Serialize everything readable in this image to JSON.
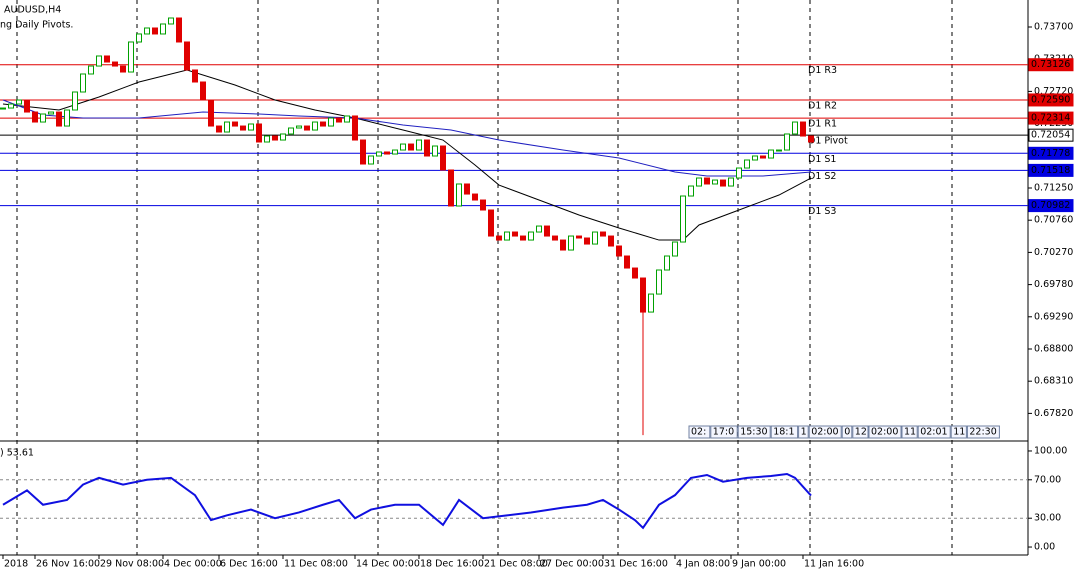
{
  "chart_data": {
    "type": "candlestick",
    "title": "AUDUSD,H4",
    "subtitle": "ng Daily Pivots.",
    "categories": [
      "2018",
      null,
      null,
      null,
      "26 Nov 16:00",
      null,
      null,
      null,
      null,
      null,
      null,
      null,
      "29 Nov 08:00",
      null,
      null,
      null,
      null,
      null,
      null,
      null,
      "4 Dec 00:00",
      null,
      null,
      null,
      null,
      null,
      null,
      "6 Dec 16:00",
      null,
      null,
      null,
      null,
      null,
      null,
      null,
      "11 Dec 08:00",
      null,
      null,
      null,
      null,
      null,
      null,
      null,
      null,
      "14 Dec 00:00",
      null,
      null,
      null,
      null,
      null,
      null,
      null,
      "18 Dec 16:00",
      null,
      null,
      null,
      null,
      null,
      null,
      null,
      "21 Dec 08:00",
      null,
      null,
      null,
      null,
      null,
      null,
      "27 Dec 00:00",
      null,
      null,
      null,
      null,
      null,
      null,
      null,
      "31 Dec 16:00",
      null,
      null,
      null,
      null,
      null,
      null,
      null,
      null,
      "4 Jan 08:00",
      null,
      null,
      null,
      null,
      null,
      null,
      "9 Jan 00:00",
      null,
      null,
      null,
      null,
      null,
      null,
      null,
      null,
      "11 Jan 16:00",
      null
    ],
    "close": [
      0.72467,
      0.72528,
      0.72589,
      0.72406,
      0.72254,
      0.72376,
      0.72406,
      0.72193,
      0.72437,
      0.72711,
      0.72985,
      0.73106,
      0.73259,
      0.73167,
      0.73106,
      0.73015,
      0.73472,
      0.73594,
      0.73685,
      0.73594,
      0.73746,
      0.73837,
      0.73472,
      0.73046,
      0.72863,
      0.72589,
      0.72193,
      0.72102,
      0.72254,
      0.72193,
      0.72132,
      0.72224,
      0.7195,
      0.72041,
      0.7198,
      0.72072,
      0.72163,
      0.72193,
      0.72132,
      0.72254,
      0.72193,
      0.72315,
      0.72254,
      0.72346,
      0.7198,
      0.71615,
      0.71737,
      0.71798,
      0.71767,
      0.71828,
      0.71919,
      0.71828,
      0.7198,
      0.71737,
      0.71889,
      0.71524,
      0.70976,
      0.71311,
      0.71158,
      0.71067,
      0.70915,
      0.70519,
      0.70458,
      0.7058,
      0.70519,
      0.70458,
      0.7058,
      0.70671,
      0.70519,
      0.70458,
      0.70306,
      0.70519,
      0.70489,
      0.70397,
      0.7058,
      0.70519,
      0.70367,
      0.70215,
      0.70032,
      0.6988,
      0.69362,
      0.69636,
      0.70002,
      0.70215,
      0.70428,
      0.71128,
      0.7128,
      0.71402,
      0.71311,
      0.71371,
      0.7128,
      0.71402,
      0.71554,
      0.71676,
      0.71737,
      0.71706,
      0.71828,
      0.71828,
      0.72072,
      0.72254,
      0.72041,
      0.7195
    ],
    "lows": [
      null,
      null,
      null,
      null,
      null,
      null,
      null,
      null,
      null,
      null,
      null,
      null,
      null,
      null,
      null,
      null,
      null,
      null,
      null,
      null,
      null,
      null,
      null,
      null,
      null,
      null,
      null,
      null,
      null,
      null,
      null,
      null,
      null,
      null,
      null,
      null,
      null,
      null,
      null,
      null,
      null,
      null,
      null,
      null,
      null,
      null,
      null,
      null,
      null,
      null,
      null,
      null,
      null,
      null,
      null,
      null,
      null,
      null,
      null,
      null,
      null,
      null,
      null,
      null,
      null,
      null,
      null,
      null,
      null,
      null,
      null,
      null,
      null,
      null,
      null,
      null,
      null,
      null,
      null,
      null,
      0.6749,
      null,
      null,
      null,
      null,
      null,
      null,
      null,
      null,
      null,
      null,
      null,
      null,
      null,
      null,
      null,
      null,
      null,
      null,
      null,
      null,
      null
    ],
    "up_color": "#00a000",
    "down_color": "#e00000",
    "series": [
      {
        "color": "#000000",
        "x": [
          0,
          7,
          12,
          17,
          23,
          29,
          34,
          39,
          44,
          50,
          55,
          59,
          62,
          67,
          72,
          77,
          82,
          85,
          87,
          92,
          97,
          101
        ],
        "values": [
          0.72528,
          0.72437,
          0.72635,
          0.72863,
          0.73046,
          0.72817,
          0.72589,
          0.72437,
          0.72315,
          0.72132,
          0.7198,
          0.716,
          0.71295,
          0.71067,
          0.70839,
          0.70641,
          0.70458,
          0.70458,
          0.70687,
          0.70915,
          0.71143,
          0.71402
        ]
      },
      {
        "color": "#2020c0",
        "x": [
          0,
          5,
          10,
          17,
          25,
          32,
          37,
          44,
          50,
          56,
          62,
          70,
          77,
          84,
          88,
          95,
          101
        ],
        "values": [
          0.72589,
          0.72361,
          0.72315,
          0.72315,
          0.72406,
          0.72376,
          0.72346,
          0.72315,
          0.72209,
          0.72132,
          0.7198,
          0.71828,
          0.71706,
          0.71493,
          0.71432,
          0.71432,
          0.71493
        ]
      }
    ],
    "levels": {
      "names": [
        "D1 R3",
        "D1 R2",
        "D1 R1",
        "D1 Pivot",
        "D1 S1",
        "D1 S2",
        "D1 S3"
      ],
      "values": [
        0.73126,
        0.7259,
        0.72314,
        0.72054,
        0.71778,
        0.71518,
        0.70982
      ],
      "value_labels": [
        "0.73126",
        "0.72590",
        "0.72314",
        "0.72054",
        "0.71778",
        "0.71518",
        "0.70982"
      ],
      "colors": [
        "#e00000",
        "#e00000",
        "#e00000",
        "#000000",
        "#0000e0",
        "#0000e0",
        "#0000e0"
      ]
    },
    "ylim": [
      0.67415,
      0.74111
    ],
    "yticks": [
      {
        "value": 0.737,
        "label": "0.73700"
      },
      {
        "value": 0.7321,
        "label": "0.73210"
      },
      {
        "value": 0.7272,
        "label": "0.72720"
      },
      {
        "value": 0.7223,
        "label": "0.72230"
      },
      {
        "value": 0.7174,
        "label": "0.71740"
      },
      {
        "value": 0.7125,
        "label": "0.71250"
      },
      {
        "value": 0.7076,
        "label": "0.70760"
      },
      {
        "value": 0.7027,
        "label": "0.70270"
      },
      {
        "value": 0.6978,
        "label": "0.69780"
      },
      {
        "value": 0.6929,
        "label": "0.69290"
      },
      {
        "value": 0.688,
        "label": "0.68800"
      },
      {
        "value": 0.6831,
        "label": "0.68310"
      },
      {
        "value": 0.6782,
        "label": "0.67820"
      }
    ],
    "time_boxes": [
      "02:",
      "17:0",
      "15:30",
      "18:1",
      "1",
      "02:00",
      "0",
      "12",
      "02:00",
      "11",
      "02:01",
      "11",
      "22:30"
    ],
    "oscillator": {
      "label": ") 53.61",
      "color": "#1010e0",
      "x": [
        0,
        3,
        5,
        8,
        10,
        12,
        15,
        18,
        21,
        24,
        26,
        28,
        31,
        34,
        37,
        40,
        42,
        44,
        46,
        49,
        52,
        55,
        57,
        60,
        63,
        66,
        70,
        73,
        75,
        77,
        79,
        80,
        82,
        84,
        86,
        88,
        90,
        93,
        96,
        98,
        99,
        101
      ],
      "values": [
        44,
        59,
        44,
        49,
        65,
        72,
        65,
        70,
        72,
        54,
        28,
        33,
        39,
        30,
        36,
        44,
        49,
        30,
        39,
        44,
        44,
        23,
        49,
        30,
        33,
        36,
        41,
        44,
        49,
        39,
        28,
        20,
        44,
        54,
        72,
        75,
        68,
        72,
        74,
        76,
        72,
        53.61
      ],
      "levels": [
        30,
        70
      ],
      "ylim": [
        -8.3,
        108.3
      ],
      "yticks": [
        {
          "value": 100,
          "label": "100.00"
        },
        {
          "value": 70,
          "label": "70.00"
        },
        {
          "value": 30,
          "label": "30.00"
        },
        {
          "value": 0,
          "label": "0.00"
        }
      ]
    }
  }
}
